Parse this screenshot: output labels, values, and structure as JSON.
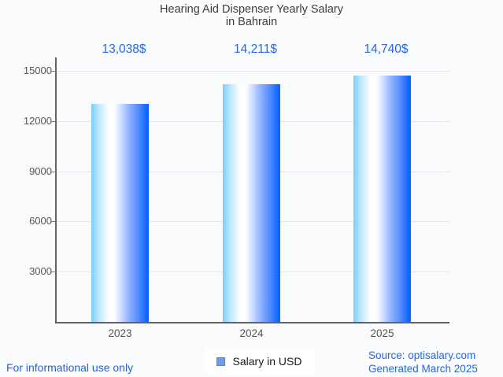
{
  "chart": {
    "title_line1": "Hearing Aid Dispenser Yearly Salary",
    "title_line2": "in Bahrain",
    "legend_label": "Salary in USD"
  },
  "chart_data": {
    "type": "bar",
    "title": "Hearing Aid Dispenser Yearly Salary in Bahrain",
    "categories": [
      "2023",
      "2024",
      "2025"
    ],
    "series": [
      {
        "name": "Salary in USD",
        "values": [
          13038,
          14211,
          14740
        ]
      }
    ],
    "values": [
      13038,
      14211,
      14740
    ],
    "value_labels": [
      "13,038$",
      "14,211$",
      "14,740$"
    ],
    "xlabel": "",
    "ylabel": "",
    "ylim": [
      0,
      15000
    ],
    "yticks": [
      3000,
      6000,
      9000,
      12000,
      15000
    ],
    "ytick_labels": [
      "3000",
      "6000",
      "9000",
      "12000",
      "15000"
    ],
    "grid": true,
    "legend_position": "bottom"
  },
  "footer": {
    "disclaimer": "For informational use only",
    "source": "Source: optisalary.com",
    "generated": "Generated March 2025"
  },
  "colors": {
    "background": "#fafbfd",
    "title_text": "#3d3d3d",
    "axis": "#636363",
    "gridline": "#e4e4e8",
    "tick_text": "#565656",
    "value_label_blue": "#2368e9",
    "footer_blue": "#1f62dd",
    "legend_swatch": "#6f9ee8",
    "legend_swatch_border": "#5585d0",
    "bar_gradient": [
      "#79cffa",
      "#ffffff",
      "#0c63fe"
    ]
  }
}
